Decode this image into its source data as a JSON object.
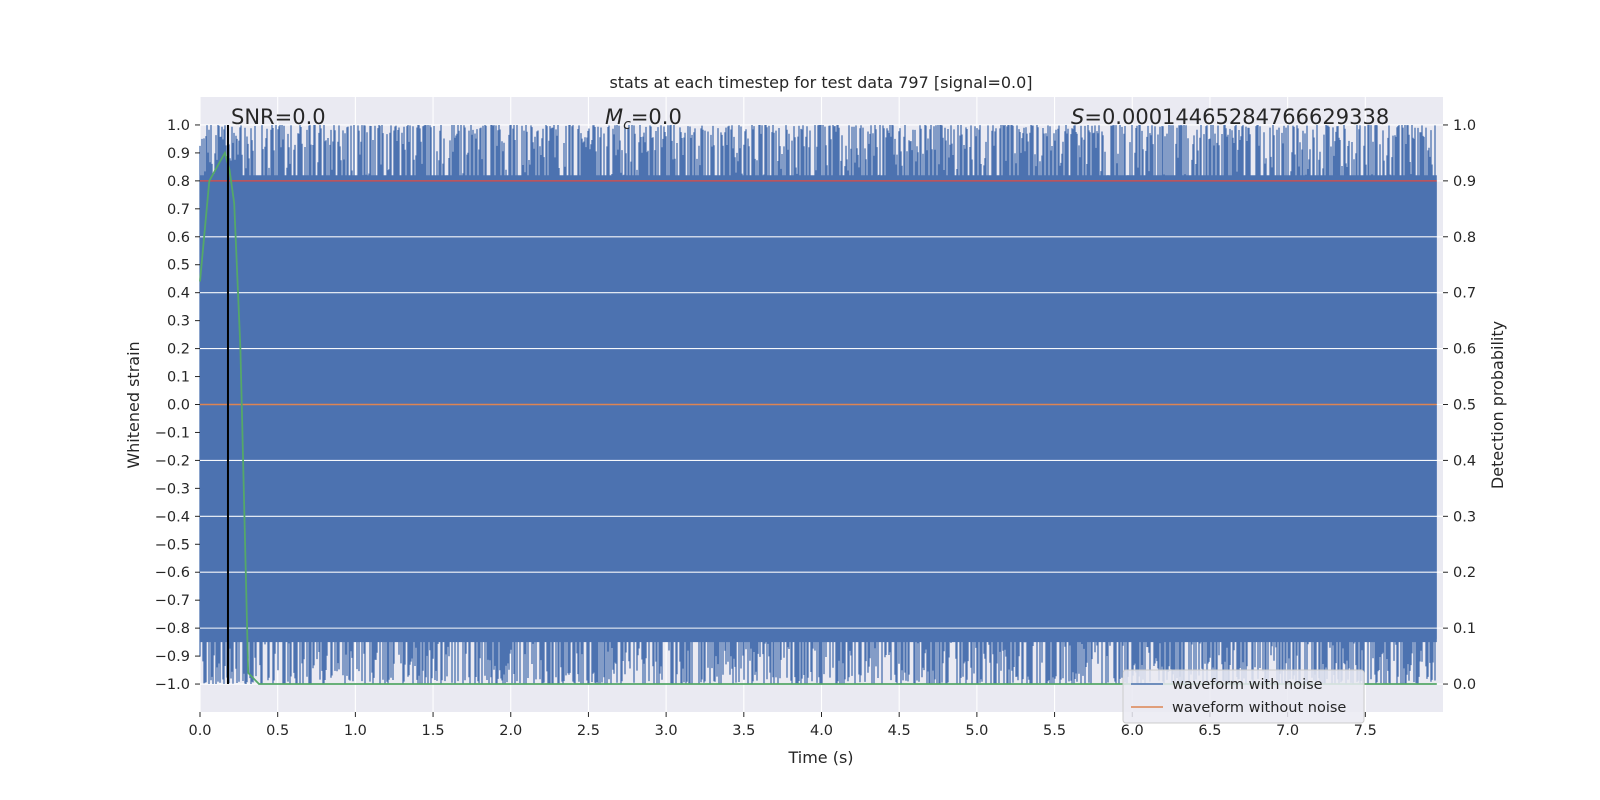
{
  "chart_data": {
    "type": "line",
    "title": "stats at each timestep for test data 797 [signal=0.0]",
    "xlabel": "Time (s)",
    "ylabel": "Whitened strain",
    "y2label": "Detection probability",
    "xlim": [
      0.0,
      8.0
    ],
    "ylim": [
      -1.1,
      1.1
    ],
    "y2lim": [
      -0.05,
      1.05
    ],
    "x_ticks": [
      "0.0",
      "0.5",
      "1.0",
      "1.5",
      "2.0",
      "2.5",
      "3.0",
      "3.5",
      "4.0",
      "4.5",
      "5.0",
      "5.5",
      "6.0",
      "6.5",
      "7.0",
      "7.5"
    ],
    "x_tick_values": [
      0.0,
      0.5,
      1.0,
      1.5,
      2.0,
      2.5,
      3.0,
      3.5,
      4.0,
      4.5,
      5.0,
      5.5,
      6.0,
      6.5,
      7.0,
      7.5
    ],
    "y_ticks": [
      "1.0",
      "0.9",
      "0.8",
      "0.7",
      "0.6",
      "0.5",
      "0.4",
      "0.3",
      "0.2",
      "0.1",
      "0.0",
      "−0.1",
      "−0.2",
      "−0.3",
      "−0.4",
      "−0.5",
      "−0.6",
      "−0.7",
      "−0.8",
      "−0.9",
      "−1.0"
    ],
    "y_tick_values": [
      1.0,
      0.9,
      0.8,
      0.7,
      0.6,
      0.5,
      0.4,
      0.3,
      0.2,
      0.1,
      0.0,
      -0.1,
      -0.2,
      -0.3,
      -0.4,
      -0.5,
      -0.6,
      -0.7,
      -0.8,
      -0.9,
      -1.0
    ],
    "y2_ticks": [
      "1.0",
      "0.9",
      "0.8",
      "0.7",
      "0.6",
      "0.5",
      "0.4",
      "0.3",
      "0.2",
      "0.1",
      "0.0"
    ],
    "y2_tick_values": [
      1.0,
      0.9,
      0.8,
      0.7,
      0.6,
      0.5,
      0.4,
      0.3,
      0.2,
      0.1,
      0.0
    ],
    "annotations": {
      "snr": "SNR=0.0",
      "mc_symbol": "M",
      "mc_sub": "c",
      "mc_value": "=0.0",
      "s_symbol": "S",
      "s_value": "=0.00014465284766629338"
    },
    "series": [
      {
        "name": "waveform with noise",
        "color": "#4c72b0",
        "axis": "left",
        "description_range": [
          -1.0,
          1.0
        ],
        "x_range": [
          0.0,
          7.96
        ]
      },
      {
        "name": "waveform without noise",
        "color": "#dd8452",
        "axis": "left",
        "x": [
          0.0,
          7.96
        ],
        "y": [
          0.0,
          0.0
        ]
      },
      {
        "color": "#c44e52",
        "axis": "right",
        "x": [
          0.0,
          7.96
        ],
        "y": [
          0.9,
          0.9
        ]
      },
      {
        "color": "#55a868",
        "axis": "right",
        "x": [
          0.0,
          0.06,
          0.12,
          0.16,
          0.19,
          0.22,
          0.26,
          0.31,
          0.38,
          0.5,
          1.0,
          2.0,
          3.0,
          4.0,
          5.0,
          6.0,
          7.0,
          7.96
        ],
        "y": [
          0.72,
          0.9,
          0.93,
          0.95,
          0.92,
          0.86,
          0.6,
          0.02,
          0.0,
          0.0,
          0.0,
          0.0,
          0.0,
          0.0,
          0.0,
          0.0,
          0.0,
          0.0
        ]
      }
    ],
    "vline": {
      "x": 0.18,
      "color": "#000000"
    },
    "grid": true,
    "legend": "bottom-right",
    "legend_entries": [
      "waveform with noise",
      "waveform without noise"
    ],
    "colors": {
      "background": "#eaeaf2",
      "grid": "#ffffff",
      "noise": "#4c72b0",
      "template": "#dd8452",
      "threshold": "#c44e52",
      "probability": "#55a868"
    }
  }
}
